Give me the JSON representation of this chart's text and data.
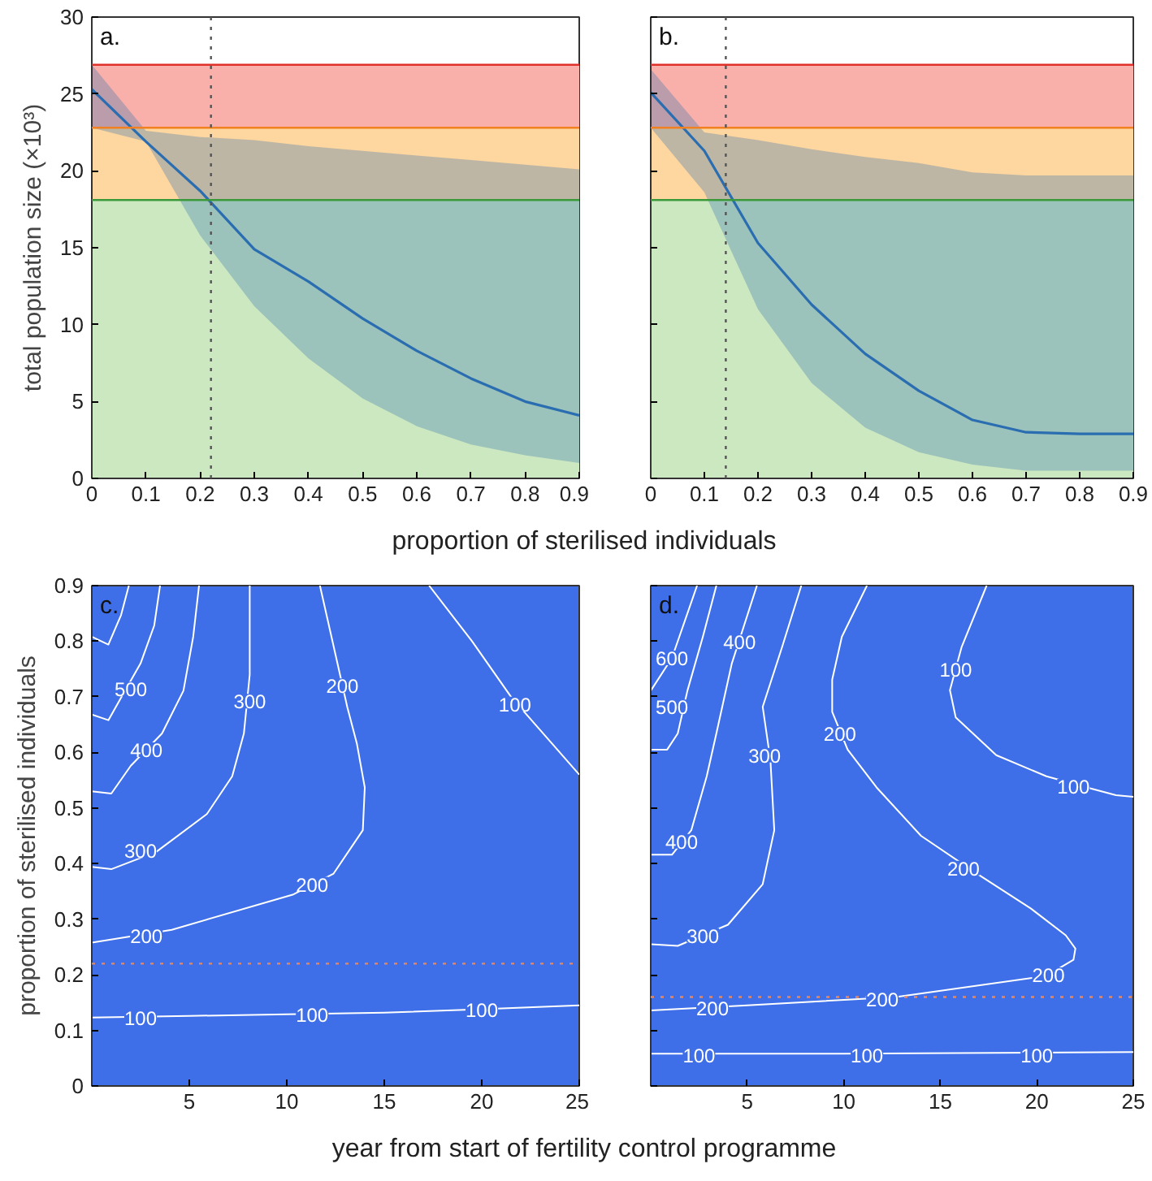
{
  "chart_data": [
    {
      "type": "line",
      "ylabel": "total population size (×10³)",
      "xlabel": "proportion of sterilised individuals",
      "annotations": [
        "a."
      ],
      "xlim": [
        0,
        0.9
      ],
      "ylim": [
        0,
        30
      ],
      "xticks": [
        0,
        0.1,
        0.2,
        0.3,
        0.4,
        0.5,
        0.6,
        0.7,
        0.8,
        0.9
      ],
      "yticks": [
        0,
        5,
        10,
        15,
        20,
        25,
        30
      ],
      "grid": false,
      "bands": [
        {
          "axis": "y",
          "from": 0,
          "to": 18.1,
          "color": "#cce8c0"
        },
        {
          "axis": "y",
          "from": 18.1,
          "to": 22.8,
          "color": "#fdd6a0"
        },
        {
          "axis": "y",
          "from": 22.8,
          "to": 26.9,
          "color": "#f9b0aa"
        }
      ],
      "ref_lines": [
        {
          "axis": "y",
          "value": 18.1,
          "color": "#3a9a3a"
        },
        {
          "axis": "y",
          "value": 22.8,
          "color": "#f08020"
        },
        {
          "axis": "y",
          "value": 26.9,
          "color": "#e0302a"
        },
        {
          "axis": "x",
          "value": 0.22,
          "color": "#555555",
          "line_style": "dotted"
        }
      ],
      "series": [
        {
          "color": "#2a6db0",
          "x": [
            0,
            0.1,
            0.2,
            0.3,
            0.4,
            0.5,
            0.6,
            0.7,
            0.8,
            0.9
          ],
          "values": [
            25.3,
            21.9,
            18.7,
            14.9,
            12.8,
            10.4,
            8.3,
            6.5,
            5.0,
            4.1
          ],
          "lower": [
            22.8,
            21.9,
            15.8,
            11.2,
            7.8,
            5.2,
            3.4,
            2.2,
            1.5,
            1.0
          ],
          "upper": [
            26.9,
            22.6,
            22.2,
            22.0,
            21.6,
            21.3,
            21.0,
            20.7,
            20.4,
            20.1
          ]
        }
      ]
    },
    {
      "type": "line",
      "annotations": [
        "b."
      ],
      "xlim": [
        0,
        0.9
      ],
      "ylim": [
        0,
        30
      ],
      "xticks": [
        0,
        0.1,
        0.2,
        0.3,
        0.4,
        0.5,
        0.6,
        0.7,
        0.8,
        0.9
      ],
      "yticks": [
        0,
        5,
        10,
        15,
        20,
        25,
        30
      ],
      "tick_labels": "x",
      "grid": false,
      "bands": [
        {
          "axis": "y",
          "from": 0,
          "to": 18.1,
          "color": "#cce8c0"
        },
        {
          "axis": "y",
          "from": 18.1,
          "to": 22.8,
          "color": "#fdd6a0"
        },
        {
          "axis": "y",
          "from": 22.8,
          "to": 26.9,
          "color": "#f9b0aa"
        }
      ],
      "ref_lines": [
        {
          "axis": "y",
          "value": 18.1,
          "color": "#3a9a3a"
        },
        {
          "axis": "y",
          "value": 22.8,
          "color": "#f08020"
        },
        {
          "axis": "y",
          "value": 26.9,
          "color": "#e0302a"
        },
        {
          "axis": "x",
          "value": 0.14,
          "color": "#555555",
          "line_style": "dotted"
        }
      ],
      "series": [
        {
          "color": "#2a6db0",
          "x": [
            0,
            0.1,
            0.2,
            0.3,
            0.4,
            0.5,
            0.6,
            0.7,
            0.8,
            0.9
          ],
          "values": [
            25.1,
            21.3,
            15.3,
            11.3,
            8.1,
            5.7,
            3.8,
            3.0,
            2.9,
            2.9
          ],
          "lower": [
            22.8,
            18.6,
            11.0,
            6.2,
            3.3,
            1.7,
            0.9,
            0.5,
            0.5,
            0.5
          ],
          "upper": [
            26.6,
            22.5,
            22.0,
            21.4,
            20.9,
            20.5,
            19.9,
            19.7,
            19.7,
            19.7
          ]
        }
      ]
    },
    {
      "type": "line",
      "ylabel": "proportion of sterilised individuals",
      "xlabel": "year from start of fertility control programme",
      "xlim": [
        0,
        25
      ],
      "ylim": [
        0,
        0.9
      ],
      "xticks": [
        5,
        10,
        15,
        20,
        25
      ],
      "yticks": [
        0,
        0.1,
        0.2,
        0.3,
        0.4,
        0.5,
        0.6,
        0.7,
        0.8,
        0.9
      ],
      "grid": false,
      "annotations": [
        "c.",
        {
          "text": "100",
          "x": 2.5,
          "y": 0.123
        },
        {
          "text": "100",
          "x": 11.3,
          "y": 0.129
        },
        {
          "text": "100",
          "x": 20.0,
          "y": 0.138
        },
        {
          "text": "100",
          "x": 21.7,
          "y": 0.687
        },
        {
          "text": "200",
          "x": 2.8,
          "y": 0.27
        },
        {
          "text": "200",
          "x": 11.3,
          "y": 0.363
        },
        {
          "text": "200",
          "x": 12.85,
          "y": 0.72
        },
        {
          "text": "300",
          "x": 2.5,
          "y": 0.423
        },
        {
          "text": "300",
          "x": 8.1,
          "y": 0.692
        },
        {
          "text": "400",
          "x": 2.8,
          "y": 0.605
        },
        {
          "text": "500",
          "x": 2.0,
          "y": 0.714
        }
      ],
      "ref_lines": [
        {
          "axis": "y",
          "value": 0.22,
          "color": "#e08a6a",
          "line_style": "dotted"
        }
      ],
      "series": [
        {
          "color": "#ffffff",
          "x": [
            0,
            5,
            10,
            15,
            20,
            25
          ],
          "values": [
            0.123,
            0.126,
            0.129,
            0.132,
            0.138,
            0.145
          ]
        },
        {
          "color": "#ffffff",
          "x": [
            17.3,
            19.5,
            21.5,
            23.5,
            25
          ],
          "values": [
            0.9,
            0.8,
            0.7,
            0.62,
            0.56
          ]
        },
        {
          "color": "#ffffff",
          "x": [
            0,
            4.1,
            10.3,
            12.4,
            13.9,
            14.0,
            13.6,
            13.1,
            12.6,
            11.7
          ],
          "values": [
            0.258,
            0.281,
            0.344,
            0.382,
            0.46,
            0.537,
            0.615,
            0.682,
            0.76,
            0.9
          ]
        },
        {
          "color": "#ffffff",
          "x": [
            0,
            1,
            3.3,
            5.9,
            7.2,
            7.8,
            8.1,
            8.1
          ],
          "values": [
            0.394,
            0.39,
            0.421,
            0.489,
            0.557,
            0.634,
            0.74,
            0.9
          ]
        },
        {
          "color": "#ffffff",
          "x": [
            0,
            1,
            2.0,
            3.6,
            4.7,
            5.2,
            5.5
          ],
          "values": [
            0.53,
            0.526,
            0.576,
            0.634,
            0.711,
            0.808,
            0.9
          ]
        },
        {
          "color": "#ffffff",
          "x": [
            0,
            0.85,
            1.4,
            2.5,
            3.2,
            3.5
          ],
          "values": [
            0.668,
            0.658,
            0.692,
            0.76,
            0.828,
            0.9
          ]
        },
        {
          "color": "#ffffff",
          "x": [
            0,
            0.85,
            1.5,
            1.9
          ],
          "values": [
            0.808,
            0.794,
            0.847,
            0.9
          ]
        }
      ]
    },
    {
      "type": "line",
      "xlim": [
        0,
        25
      ],
      "ylim": [
        0,
        0.9
      ],
      "xticks": [
        5,
        10,
        15,
        20,
        25
      ],
      "yticks": [
        0,
        0.1,
        0.2,
        0.3,
        0.4,
        0.5,
        0.6,
        0.7,
        0.8,
        0.9
      ],
      "tick_labels": "x",
      "grid": false,
      "annotations": [
        "d.",
        {
          "text": "100",
          "x": 2.5,
          "y": 0.055
        },
        {
          "text": "100",
          "x": 11.2,
          "y": 0.055
        },
        {
          "text": "100",
          "x": 20.0,
          "y": 0.055
        },
        {
          "text": "100",
          "x": 15.8,
          "y": 0.75
        },
        {
          "text": "100",
          "x": 21.9,
          "y": 0.539
        },
        {
          "text": "200",
          "x": 3.2,
          "y": 0.14
        },
        {
          "text": "200",
          "x": 12.0,
          "y": 0.157
        },
        {
          "text": "200",
          "x": 20.6,
          "y": 0.2
        },
        {
          "text": "200",
          "x": 16.2,
          "y": 0.392
        },
        {
          "text": "200",
          "x": 9.8,
          "y": 0.634
        },
        {
          "text": "300",
          "x": 2.7,
          "y": 0.271
        },
        {
          "text": "300",
          "x": 5.9,
          "y": 0.595
        },
        {
          "text": "400",
          "x": 1.6,
          "y": 0.44
        },
        {
          "text": "400",
          "x": 4.6,
          "y": 0.799
        },
        {
          "text": "500",
          "x": 1.1,
          "y": 0.682
        },
        {
          "text": "600",
          "x": 1.1,
          "y": 0.77
        }
      ],
      "ref_lines": [
        {
          "axis": "y",
          "value": 0.16,
          "color": "#e08a6a",
          "line_style": "dotted"
        }
      ],
      "series": [
        {
          "color": "#ffffff",
          "x": [
            0,
            10,
            25
          ],
          "values": [
            0.058,
            0.058,
            0.061
          ]
        },
        {
          "color": "#ffffff",
          "x": [
            0,
            5,
            12.7,
            20.5,
            21.9,
            22.0,
            21.5,
            19.7,
            16.9,
            14.0,
            11.7,
            10.2,
            9.4,
            9.4,
            9.9,
            11.2
          ],
          "values": [
            0.136,
            0.145,
            0.16,
            0.198,
            0.227,
            0.247,
            0.271,
            0.319,
            0.382,
            0.45,
            0.537,
            0.605,
            0.673,
            0.731,
            0.808,
            0.9
          ]
        },
        {
          "color": "#ffffff",
          "x": [
            17.4,
            16.1,
            15.5,
            15.8,
            17.9,
            20.5,
            22.6,
            24.1,
            25
          ],
          "values": [
            0.9,
            0.789,
            0.712,
            0.663,
            0.595,
            0.557,
            0.537,
            0.523,
            0.52
          ]
        },
        {
          "color": "#ffffff",
          "x": [
            0,
            1.4,
            4.0,
            5.8,
            6.4,
            6.2,
            5.8,
            6.8,
            7.8
          ],
          "values": [
            0.255,
            0.252,
            0.29,
            0.363,
            0.46,
            0.586,
            0.682,
            0.789,
            0.9
          ]
        },
        {
          "color": "#ffffff",
          "x": [
            0,
            1.1,
            2.1,
            2.9,
            3.4,
            4.2,
            5.5
          ],
          "values": [
            0.416,
            0.416,
            0.46,
            0.557,
            0.634,
            0.76,
            0.9
          ]
        },
        {
          "color": "#ffffff",
          "x": [
            0,
            0.85,
            1.4,
            1.9,
            2.7,
            3.4
          ],
          "values": [
            0.605,
            0.605,
            0.634,
            0.711,
            0.808,
            0.9
          ]
        },
        {
          "color": "#ffffff",
          "x": [
            0,
            1.1,
            2.4
          ],
          "values": [
            0.711,
            0.77,
            0.9
          ]
        }
      ]
    }
  ]
}
